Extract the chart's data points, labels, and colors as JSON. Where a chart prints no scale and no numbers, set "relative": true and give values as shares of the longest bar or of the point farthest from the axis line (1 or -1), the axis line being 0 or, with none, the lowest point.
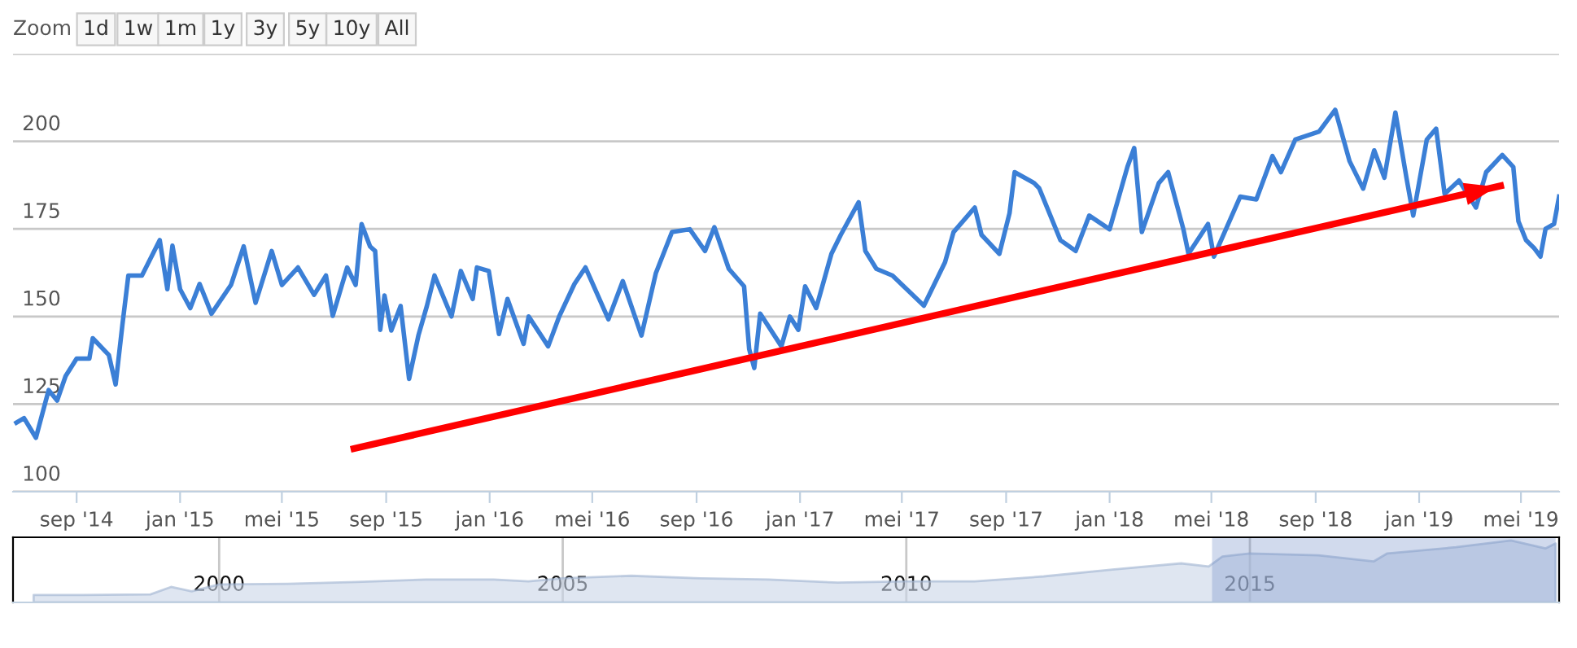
{
  "chart_data": [
    {
      "type": "line",
      "annotations": [
        "Zoom",
        "1d",
        "1w",
        "1m",
        "1y",
        "3y",
        "5y",
        "10y",
        "All"
      ],
      "xlim": [
        "2014-06-18",
        "2019-06-15"
      ],
      "ylim": [
        100,
        225
      ],
      "xticks": [
        {
          "value": "2014-09-01",
          "label": "sep '14"
        },
        {
          "value": "2015-01-01",
          "label": "jan '15"
        },
        {
          "value": "2015-05-01",
          "label": "mei '15"
        },
        {
          "value": "2015-09-01",
          "label": "sep '15"
        },
        {
          "value": "2016-01-01",
          "label": "jan '16"
        },
        {
          "value": "2016-05-01",
          "label": "mei '16"
        },
        {
          "value": "2016-09-01",
          "label": "sep '16"
        },
        {
          "value": "2017-01-01",
          "label": "jan '17"
        },
        {
          "value": "2017-05-01",
          "label": "mei '17"
        },
        {
          "value": "2017-09-01",
          "label": "sep '17"
        },
        {
          "value": "2018-01-01",
          "label": "jan '18"
        },
        {
          "value": "2018-05-01",
          "label": "mei '18"
        },
        {
          "value": "2018-09-01",
          "label": "sep '18"
        },
        {
          "value": "2019-01-01",
          "label": "jan '19"
        },
        {
          "value": "2019-05-01",
          "label": "mei '19"
        }
      ],
      "yticks": [
        100,
        125,
        150,
        175,
        200,
        {
          "value": 225,
          "label": null
        }
      ],
      "grid": "y",
      "series": [
        {
          "color": "#3b7fd6",
          "x": [
            "2014-06-22",
            "2014-07-01",
            "2014-07-15",
            "2014-07-30",
            "2014-08-09",
            "2014-08-19",
            "2014-09-01",
            "2014-09-16",
            "2014-09-20",
            "2014-10-09",
            "2014-10-17",
            "2014-10-25",
            "2014-11-01",
            "2014-11-17",
            "2014-12-08",
            "2014-12-17",
            "2014-12-23",
            "2015-01-01",
            "2015-01-13",
            "2015-01-24",
            "2015-02-07",
            "2015-03-02",
            "2015-03-17",
            "2015-03-31",
            "2015-04-19",
            "2015-05-01",
            "2015-05-20",
            "2015-06-08",
            "2015-06-22",
            "2015-06-30",
            "2015-07-17",
            "2015-07-27",
            "2015-08-03",
            "2015-08-13",
            "2015-08-19",
            "2015-08-25",
            "2015-08-30",
            "2015-09-07",
            "2015-09-18",
            "2015-09-28",
            "2015-10-09",
            "2015-10-19",
            "2015-10-28",
            "2015-11-17",
            "2015-11-28",
            "2015-12-12",
            "2015-12-17",
            "2015-12-31",
            "2016-01-12",
            "2016-01-22",
            "2016-02-10",
            "2016-02-16",
            "2016-03-10",
            "2016-03-23",
            "2016-04-10",
            "2016-04-23",
            "2016-05-20",
            "2016-06-06",
            "2016-06-28",
            "2016-07-15",
            "2016-08-03",
            "2016-08-24",
            "2016-09-11",
            "2016-09-22",
            "2016-10-09",
            "2016-10-27",
            "2016-11-02",
            "2016-11-08",
            "2016-11-15",
            "2016-12-10",
            "2016-12-20",
            "2016-12-30",
            "2017-01-07",
            "2017-01-20",
            "2017-02-07",
            "2017-02-18",
            "2017-03-11",
            "2017-03-19",
            "2017-04-01",
            "2017-04-20",
            "2017-05-27",
            "2017-06-21",
            "2017-07-01",
            "2017-07-26",
            "2017-08-03",
            "2017-08-24",
            "2017-09-05",
            "2017-09-11",
            "2017-10-04",
            "2017-10-10",
            "2017-11-04",
            "2017-11-22",
            "2017-12-08",
            "2018-01-01",
            "2018-01-22",
            "2018-01-30",
            "2018-02-08",
            "2018-02-28",
            "2018-03-11",
            "2018-03-29",
            "2018-04-04",
            "2018-04-27",
            "2018-05-04",
            "2018-06-04",
            "2018-06-23",
            "2018-07-12",
            "2018-07-22",
            "2018-08-08",
            "2018-09-05",
            "2018-09-24",
            "2018-10-11",
            "2018-10-27",
            "2018-11-09",
            "2018-11-21",
            "2018-12-04",
            "2018-12-17",
            "2018-12-25",
            "2019-01-10",
            "2019-01-21",
            "2019-01-31",
            "2019-02-17",
            "2019-03-09",
            "2019-03-21",
            "2019-04-09",
            "2019-04-22",
            "2019-04-28",
            "2019-05-07",
            "2019-05-17",
            "2019-05-24",
            "2019-05-30",
            "2019-06-09",
            "2019-06-15"
          ],
          "values": [
            119.7,
            121,
            115.4,
            129,
            126,
            133,
            138,
            138,
            143.8,
            139,
            130.6,
            147.7,
            161.7,
            161.7,
            171.8,
            157.8,
            170.2,
            157.8,
            152.4,
            159.3,
            150.8,
            159,
            170,
            153.9,
            168.7,
            159,
            164,
            156.2,
            161.7,
            150.2,
            164,
            159,
            176.4,
            170,
            168.7,
            146.2,
            156,
            146,
            153,
            132.2,
            144.6,
            153,
            161.7,
            150,
            163,
            155,
            164,
            163,
            145,
            155,
            142.2,
            150,
            141.5,
            150,
            159.3,
            164,
            149.2,
            160.1,
            144.6,
            162.4,
            174.1,
            174.9,
            168.7,
            175.5,
            163.6,
            158.6,
            140.7,
            135.3,
            150.8,
            141.5,
            150,
            146.2,
            158.6,
            152.4,
            167.9,
            173.3,
            182.6,
            168.7,
            163.6,
            161.7,
            153.1,
            165.5,
            174.1,
            181.1,
            173.3,
            167.9,
            179.5,
            191.2,
            188.1,
            186.6,
            171.8,
            168.7,
            178.8,
            174.9,
            192.7,
            198.1,
            174.1,
            188.1,
            191.2,
            174.9,
            167.9,
            176.4,
            167.1,
            184.2,
            183.4,
            195.8,
            191.2,
            200.5,
            202.8,
            209,
            194.3,
            186.5,
            197.4,
            189.6,
            208.2,
            189.6,
            178.8,
            200.5,
            203.6,
            185,
            188.8,
            181.1,
            191.2,
            196.1,
            192.7,
            177.2,
            171.8,
            169.4,
            167.1,
            175,
            176.4,
            184.2
          ]
        },
        {
          "type": "line",
          "color": "#ff0000",
          "x": [
            "2015-07-25",
            "2019-04-07"
          ],
          "values": [
            112.3,
            187.3
          ]
        }
      ]
    },
    {
      "type": "area",
      "relative": true,
      "tick_labels": "x",
      "grid": "x",
      "xlim": [
        1997,
        2019.5
      ],
      "xticks": [
        2000,
        2005,
        2010,
        2015
      ],
      "bands": [
        {
          "axis": "x",
          "from": 2014.45,
          "to": 2019.45,
          "color": "#6685c2"
        }
      ],
      "series": [
        {
          "color": "#c9d6e8",
          "x": [
            1997.3,
            1998,
            1999,
            1999.3,
            1999.6,
            2000,
            2001,
            2002,
            2003,
            2004,
            2004.5,
            2005,
            2006,
            2007,
            2008,
            2009,
            2010,
            2011,
            2012,
            2013,
            2014,
            2014.4,
            2014.6,
            2015,
            2016,
            2016.8,
            2017,
            2018,
            2018.8,
            2019.3,
            2019.45
          ],
          "values": [
            0.12,
            0.12,
            0.13,
            0.25,
            0.18,
            0.29,
            0.3,
            0.33,
            0.37,
            0.37,
            0.34,
            0.39,
            0.43,
            0.39,
            0.37,
            0.32,
            0.34,
            0.34,
            0.42,
            0.53,
            0.63,
            0.58,
            0.74,
            0.79,
            0.76,
            0.66,
            0.79,
            0.89,
            1,
            0.87,
            0.95
          ]
        }
      ]
    }
  ]
}
